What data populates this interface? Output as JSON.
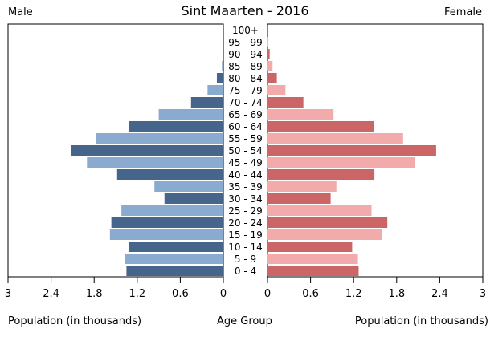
{
  "chart_data": {
    "type": "bar",
    "title": "Sint Maarten - 2016",
    "left_header": "Male",
    "right_header": "Female",
    "xlabel_left": "Population (in thousands)",
    "xlabel_center": "Age Group",
    "xlabel_right": "Population (in thousands)",
    "xlim": [
      0,
      3
    ],
    "xticks": [
      "0",
      "0.6",
      "1.2",
      "1.8",
      "2.4",
      "3"
    ],
    "categories": [
      "0 - 4",
      "5 - 9",
      "10 - 14",
      "15 - 19",
      "20 - 24",
      "25 - 29",
      "30 - 34",
      "35 - 39",
      "40 - 44",
      "45 - 49",
      "50 - 54",
      "55 - 59",
      "60 - 64",
      "65 - 69",
      "70 - 74",
      "75 - 79",
      "80 - 84",
      "85 - 89",
      "90 - 94",
      "95 - 99",
      "100+"
    ],
    "series": [
      {
        "name": "Male",
        "values": [
          1.35,
          1.37,
          1.32,
          1.58,
          1.56,
          1.42,
          0.82,
          0.96,
          1.48,
          1.9,
          2.12,
          1.77,
          1.32,
          0.9,
          0.45,
          0.22,
          0.09,
          0.02,
          0.01,
          0.01,
          0.0
        ]
      },
      {
        "name": "Female",
        "values": [
          1.27,
          1.26,
          1.18,
          1.59,
          1.67,
          1.45,
          0.88,
          0.96,
          1.49,
          2.06,
          2.35,
          1.89,
          1.48,
          0.92,
          0.5,
          0.25,
          0.13,
          0.07,
          0.03,
          0.01,
          0.0
        ]
      }
    ],
    "colors": {
      "male_dark": "#45658A",
      "male_light": "#8BAAD0",
      "female_dark": "#CC6666",
      "female_light": "#F2ABAB"
    }
  }
}
